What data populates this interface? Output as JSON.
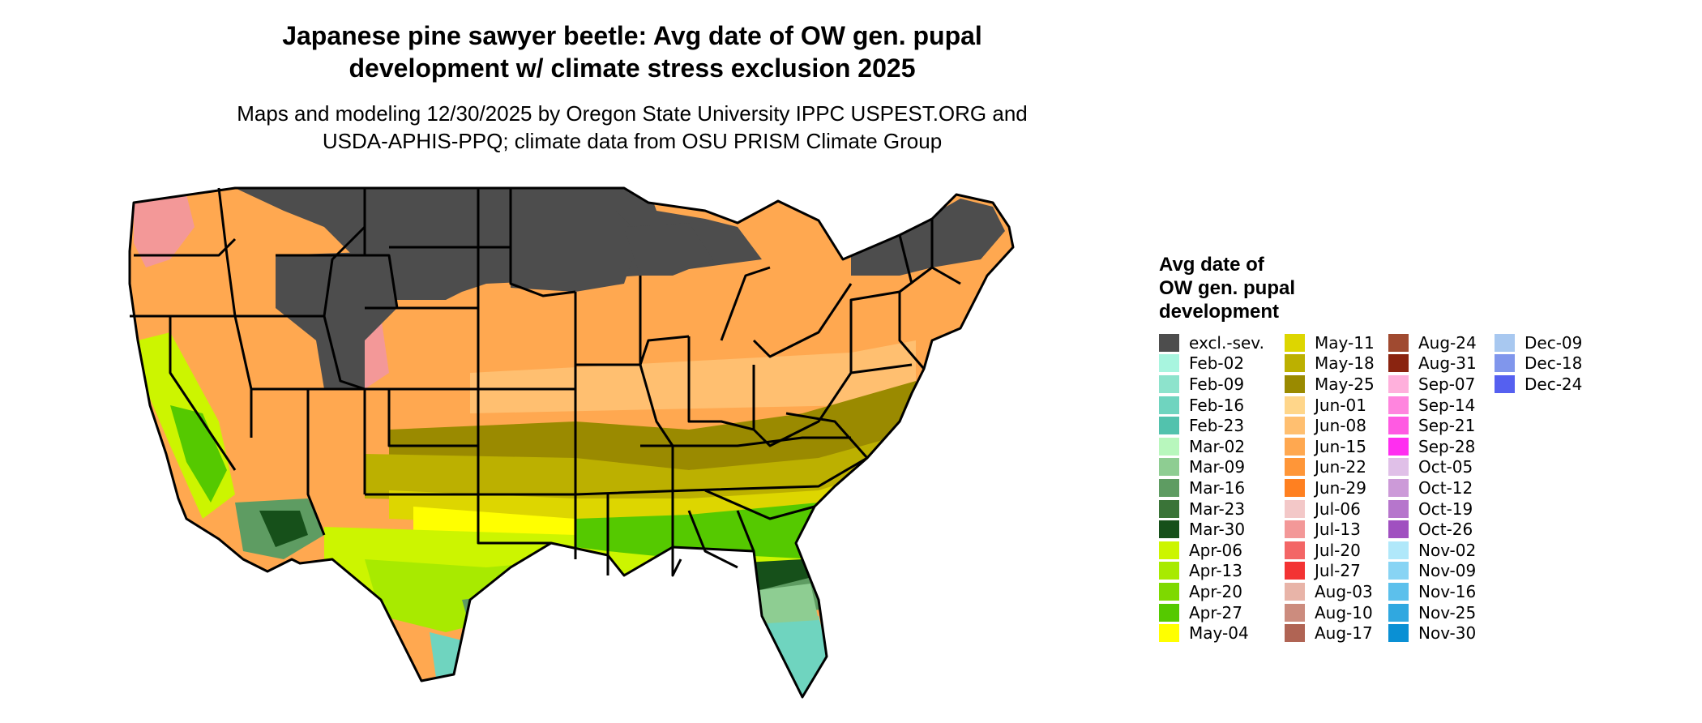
{
  "title_line1": "Japanese pine sawyer beetle: Avg date of OW gen. pupal",
  "title_line2": "development w/ climate stress exclusion 2025",
  "subtitle_line1": "Maps and modeling 12/30/2025 by Oregon State University IPPC USPEST.ORG and",
  "subtitle_line2": "USDA-APHIS-PPQ; climate data from OSU PRISM Climate Group",
  "legend": {
    "title_line1": "Avg date of",
    "title_line2": "OW gen. pupal",
    "title_line3": "development",
    "columns": [
      [
        {
          "label": "excl.-sev.",
          "color": "#4d4d4d"
        },
        {
          "label": "Feb-02",
          "color": "#a8f5df"
        },
        {
          "label": "Feb-09",
          "color": "#8de3cc"
        },
        {
          "label": "Feb-16",
          "color": "#6fd4bf"
        },
        {
          "label": "Feb-23",
          "color": "#52c2ad"
        },
        {
          "label": "Mar-02",
          "color": "#b8f7bd"
        },
        {
          "label": "Mar-09",
          "color": "#8ecd92"
        },
        {
          "label": "Mar-16",
          "color": "#5e9c62"
        },
        {
          "label": "Mar-23",
          "color": "#3a7438"
        },
        {
          "label": "Mar-30",
          "color": "#16501a"
        },
        {
          "label": "Apr-06",
          "color": "#ccf500"
        },
        {
          "label": "Apr-13",
          "color": "#a8ea00"
        },
        {
          "label": "Apr-20",
          "color": "#7ed900"
        },
        {
          "label": "Apr-27",
          "color": "#55c900"
        },
        {
          "label": "May-04",
          "color": "#ffff00"
        }
      ],
      [
        {
          "label": "May-11",
          "color": "#ddd600"
        },
        {
          "label": "May-18",
          "color": "#bcb000"
        },
        {
          "label": "May-25",
          "color": "#9a8a00"
        },
        {
          "label": "Jun-01",
          "color": "#ffd68a"
        },
        {
          "label": "Jun-08",
          "color": "#ffbf70"
        },
        {
          "label": "Jun-15",
          "color": "#ffa850"
        },
        {
          "label": "Jun-22",
          "color": "#ff9638"
        },
        {
          "label": "Jun-29",
          "color": "#ff8020"
        },
        {
          "label": "Jul-06",
          "color": "#f3c8c8"
        },
        {
          "label": "Jul-13",
          "color": "#f39898"
        },
        {
          "label": "Jul-20",
          "color": "#f36666"
        },
        {
          "label": "Jul-27",
          "color": "#f33333"
        },
        {
          "label": "Aug-03",
          "color": "#e8b4a8"
        },
        {
          "label": "Aug-10",
          "color": "#cc8c7e"
        },
        {
          "label": "Aug-17",
          "color": "#b06454"
        }
      ],
      [
        {
          "label": "Aug-24",
          "color": "#a04a30"
        },
        {
          "label": "Aug-31",
          "color": "#8a2410"
        },
        {
          "label": "Sep-07",
          "color": "#ffb0dc"
        },
        {
          "label": "Sep-14",
          "color": "#ff85de"
        },
        {
          "label": "Sep-21",
          "color": "#ff5ae2"
        },
        {
          "label": "Sep-28",
          "color": "#ff2ef0"
        },
        {
          "label": "Oct-05",
          "color": "#e0c0e8"
        },
        {
          "label": "Oct-12",
          "color": "#cc9ad8"
        },
        {
          "label": "Oct-19",
          "color": "#b676cc"
        },
        {
          "label": "Oct-26",
          "color": "#a050c0"
        },
        {
          "label": "Nov-02",
          "color": "#b0e8fa"
        },
        {
          "label": "Nov-09",
          "color": "#88d4f4"
        },
        {
          "label": "Nov-16",
          "color": "#5cc0ec"
        },
        {
          "label": "Nov-25",
          "color": "#30a8e0"
        },
        {
          "label": "Nov-30",
          "color": "#0a90d4"
        }
      ],
      [
        {
          "label": "Dec-09",
          "color": "#a8c8f0"
        },
        {
          "label": "Dec-18",
          "color": "#8096ec"
        },
        {
          "label": "Dec-24",
          "color": "#5560f0"
        }
      ]
    ]
  },
  "map_colors": {
    "excluded": "#4d4d4d",
    "jun": "#ffa850",
    "jun_light": "#ffbf70",
    "may25": "#9a8a00",
    "may18": "#bcb000",
    "may11": "#ddd600",
    "may04": "#ffff00",
    "apr06": "#ccf500",
    "apr13": "#a8ea00",
    "apr27": "#55c900",
    "mar16": "#5e9c62",
    "mar30": "#16501a",
    "mar09": "#8ecd92",
    "feb": "#6fd4bf",
    "pink": "#f39898"
  }
}
